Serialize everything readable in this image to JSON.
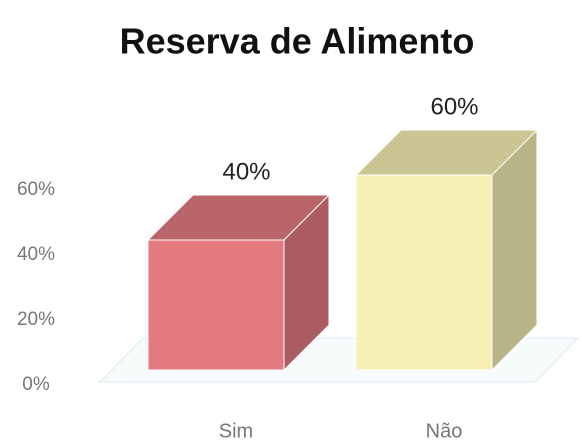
{
  "chart_data": {
    "type": "bar3d",
    "title": "Reserva de Alimento",
    "categories": [
      "Sim",
      "Não"
    ],
    "values": [
      40,
      60
    ],
    "value_labels": [
      "40%",
      "60%"
    ],
    "colors": [
      "#e27a80",
      "#f7f0b4"
    ],
    "ylim": [
      0,
      60
    ],
    "yticks": [
      {
        "value": 0,
        "label": "0%"
      },
      {
        "value": 20,
        "label": "20%"
      },
      {
        "value": 40,
        "label": "40%"
      },
      {
        "value": 60,
        "label": "60%"
      }
    ]
  }
}
